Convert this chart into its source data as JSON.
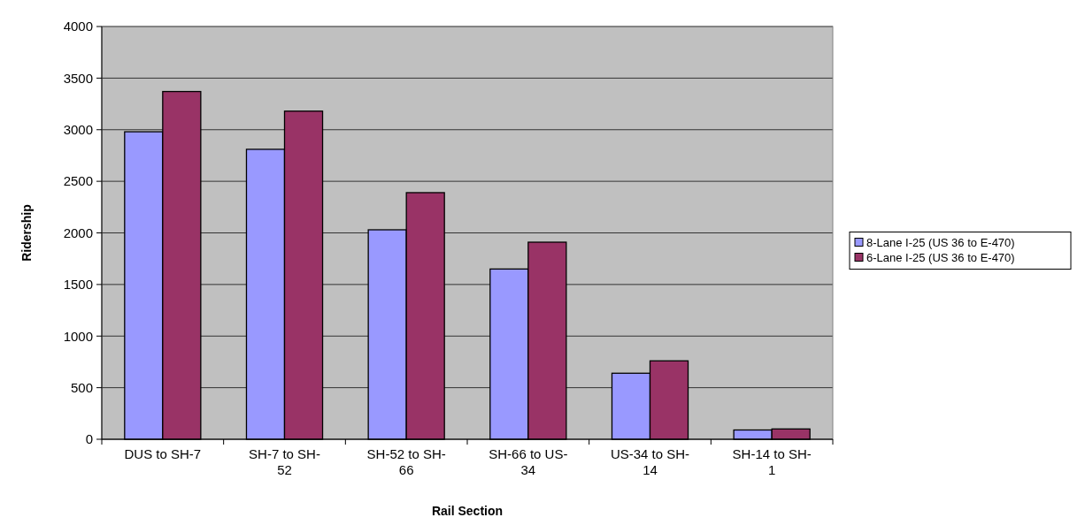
{
  "chart_data": {
    "type": "bar",
    "xlabel": "Rail Section",
    "ylabel": "Ridership",
    "categories": [
      "DUS to SH-7",
      "SH-7 to SH-52",
      "SH-52 to SH-66",
      "SH-66 to US-34",
      "US-34 to SH-14",
      "SH-14 to SH-1"
    ],
    "series": [
      {
        "name": "8-Lane I-25 (US 36 to E-470)",
        "color": "#9999ff",
        "values": [
          2980,
          2810,
          2030,
          1650,
          640,
          90
        ]
      },
      {
        "name": "6-Lane I-25 (US 36 to E-470)",
        "color": "#993366",
        "values": [
          3370,
          3180,
          2390,
          1910,
          760,
          100
        ]
      }
    ],
    "ylim": [
      0,
      4000
    ],
    "yticks": [
      0,
      500,
      1000,
      1500,
      2000,
      2500,
      3000,
      3500,
      4000
    ],
    "grid": "y",
    "legend": "right"
  }
}
